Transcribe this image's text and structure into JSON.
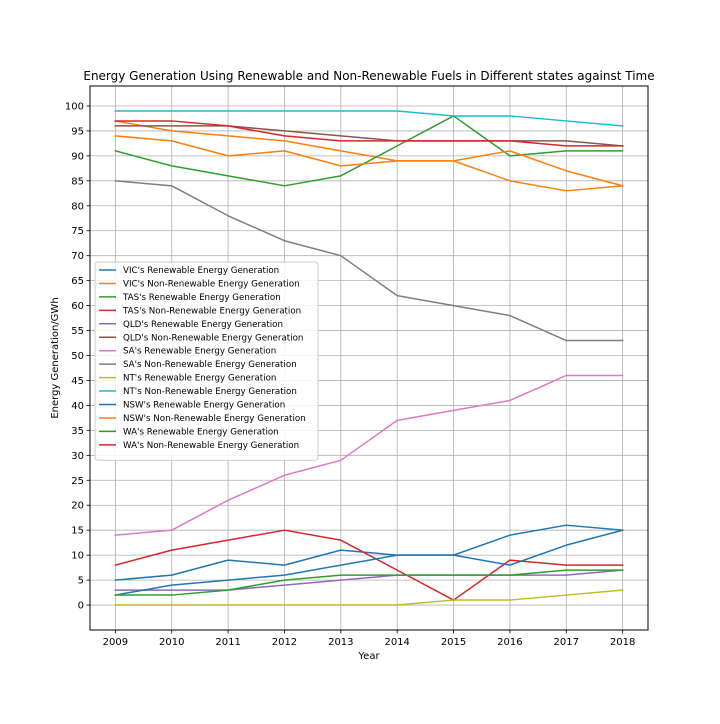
{
  "chart_data": {
    "type": "line",
    "title": "Energy Generation Using Renewable and Non-Renewable Fuels in Different states against Time",
    "xlabel": "Year",
    "ylabel": "Energy Generation/GWh",
    "x": [
      2009,
      2010,
      2011,
      2012,
      2013,
      2014,
      2015,
      2016,
      2017,
      2018
    ],
    "xlim": [
      2008.55,
      2018.45
    ],
    "ylim": [
      -5,
      104
    ],
    "yticks": [
      0,
      5,
      10,
      15,
      20,
      25,
      30,
      35,
      40,
      45,
      50,
      55,
      60,
      65,
      70,
      75,
      80,
      85,
      90,
      95,
      100
    ],
    "grid": true,
    "legend_position": "center-left",
    "series": [
      {
        "name": "VIC's Renewable Energy Generation",
        "color": "#1f77b4",
        "values": [
          5,
          6,
          9,
          8,
          11,
          10,
          10,
          14,
          16,
          15
        ]
      },
      {
        "name": "VIC's Non-Renewable Energy Generation",
        "color": "#ff7f0e",
        "values": [
          97,
          95,
          94,
          93,
          91,
          89,
          89,
          85,
          83,
          84
        ]
      },
      {
        "name": "TAS's Renewable Energy Generation",
        "color": "#2ca02c",
        "values": [
          91,
          88,
          86,
          84,
          86,
          92,
          98,
          90,
          91,
          91
        ]
      },
      {
        "name": "TAS's Non-Renewable Energy Generation",
        "color": "#d62728",
        "values": [
          8,
          11,
          13,
          15,
          13,
          7,
          1,
          9,
          8,
          8
        ]
      },
      {
        "name": "QLD's Renewable Energy Generation",
        "color": "#9467bd",
        "values": [
          3,
          3,
          3,
          4,
          5,
          6,
          6,
          6,
          6,
          7
        ]
      },
      {
        "name": "QLD's Non-Renewable Energy Generation",
        "color": "#8c564b",
        "values": [
          96,
          96,
          96,
          95,
          94,
          93,
          93,
          93,
          93,
          92
        ]
      },
      {
        "name": "SA's Renewable Energy Generation",
        "color": "#e377c2",
        "values": [
          14,
          15,
          21,
          26,
          29,
          37,
          39,
          41,
          46,
          46
        ]
      },
      {
        "name": "SA's Non-Renewable Energy Generation",
        "color": "#7f7f7f",
        "values": [
          85,
          84,
          78,
          73,
          70,
          62,
          60,
          58,
          53,
          53
        ]
      },
      {
        "name": "NT's Renewable Energy Generation",
        "color": "#bcbd22",
        "values": [
          0,
          0,
          0,
          0,
          0,
          0,
          1,
          1,
          2,
          3
        ]
      },
      {
        "name": "NT's Non-Renewable Energy Generation",
        "color": "#17becf",
        "values": [
          99,
          99,
          99,
          99,
          99,
          99,
          98,
          98,
          97,
          96
        ]
      },
      {
        "name": "NSW's Renewable Energy Generation",
        "color": "#1f77b4",
        "values": [
          2,
          4,
          5,
          6,
          8,
          10,
          10,
          8,
          12,
          15
        ]
      },
      {
        "name": "NSW's Non-Renewable Energy Generation",
        "color": "#ff7f0e",
        "values": [
          94,
          93,
          90,
          91,
          88,
          89,
          89,
          91,
          87,
          84
        ]
      },
      {
        "name": "WA's Renewable Energy Generation",
        "color": "#2ca02c",
        "values": [
          2,
          2,
          3,
          5,
          6,
          6,
          6,
          6,
          7,
          7
        ]
      },
      {
        "name": "WA's Non-Renewable Energy Generation",
        "color": "#d62728",
        "values": [
          97,
          97,
          96,
          94,
          93,
          93,
          93,
          93,
          92,
          92
        ]
      }
    ]
  }
}
